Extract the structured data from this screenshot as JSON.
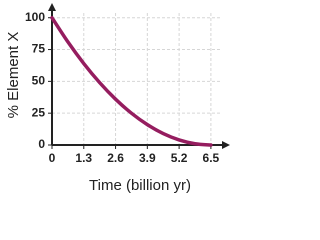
{
  "chart_data": {
    "type": "line",
    "x_label": "Time (billion yr)",
    "y_label": "% Element X",
    "x": [
      0,
      0.65,
      1.3,
      1.95,
      2.6,
      3.25,
      3.9,
      4.55,
      5.2,
      5.85,
      6.5
    ],
    "series": [
      {
        "name": "Element X",
        "color": "#951d5f",
        "values": [
          100,
          81,
          64,
          49,
          36,
          25,
          16,
          9,
          4,
          1,
          0
        ]
      }
    ],
    "xlim": [
      0,
      7.2
    ],
    "ylim": [
      0,
      110
    ],
    "xticks": [
      0,
      1.3,
      2.6,
      3.9,
      5.2,
      6.5
    ],
    "yticks": [
      0,
      25,
      50,
      75,
      100
    ],
    "grid": true
  }
}
